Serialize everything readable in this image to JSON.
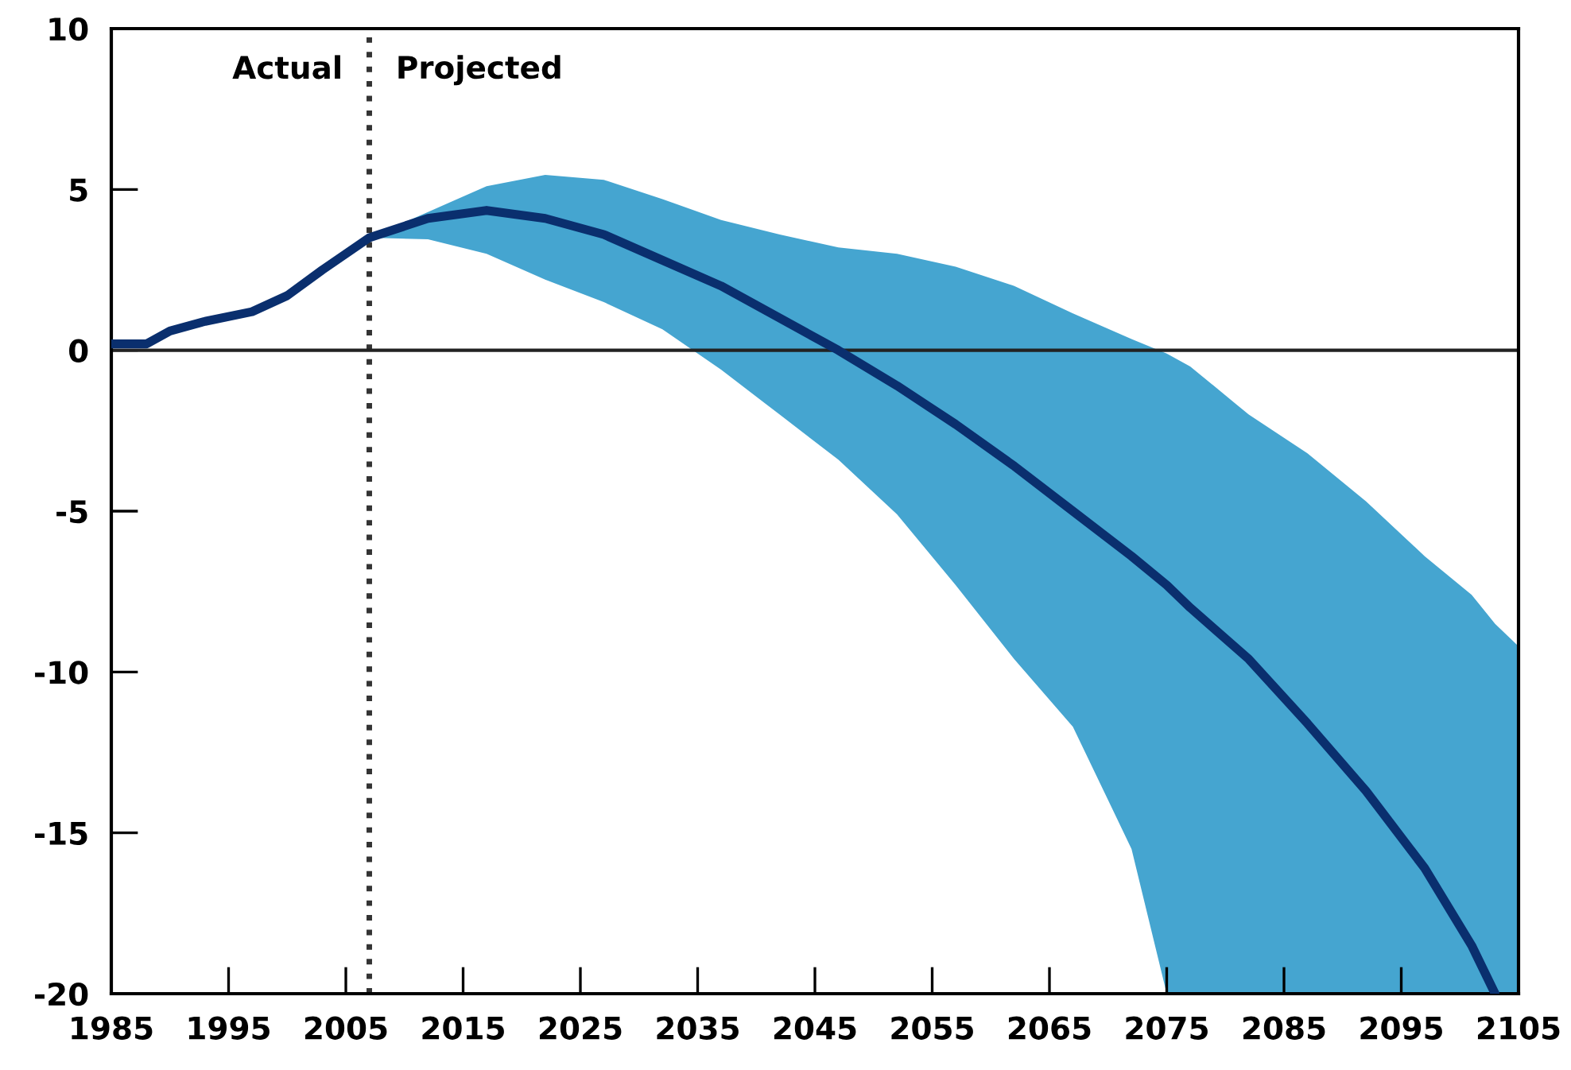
{
  "chart_data": {
    "type": "line",
    "xlim": [
      1985,
      2105
    ],
    "ylim": [
      -20,
      10
    ],
    "xticks": [
      1985,
      1995,
      2005,
      2015,
      2025,
      2035,
      2045,
      2055,
      2065,
      2075,
      2085,
      2095,
      2105
    ],
    "yticks": [
      -20,
      -15,
      -10,
      -5,
      0,
      5,
      10
    ],
    "grid": false,
    "legend": false,
    "series": [
      {
        "color": "#0a2f6e",
        "x": [
          1985,
          1988,
          1990,
          1993,
          1997,
          2000,
          2003,
          2005,
          2007,
          2012,
          2017,
          2022,
          2027,
          2032,
          2037,
          2042,
          2047,
          2052,
          2057,
          2062,
          2067,
          2072,
          2075,
          2077,
          2082,
          2087,
          2092,
          2097,
          2101,
          2103,
          2105
        ],
        "values": [
          0.2,
          0.2,
          0.6,
          0.9,
          1.2,
          1.7,
          2.5,
          3.0,
          3.5,
          4.1,
          4.35,
          4.1,
          3.6,
          2.8,
          2.0,
          1.0,
          0,
          -1.1,
          -2.3,
          -3.6,
          -5.0,
          -6.4,
          -7.3,
          -8.0,
          -9.6,
          -11.6,
          -13.7,
          -16.1,
          -18.5,
          -20,
          null
        ],
        "upper": [
          null,
          null,
          null,
          null,
          null,
          null,
          null,
          null,
          3.5,
          4.3,
          5.1,
          5.45,
          5.3,
          4.7,
          4.05,
          3.6,
          3.2,
          3.0,
          2.6,
          2.0,
          1.15,
          0.35,
          -0.1,
          -0.5,
          -2.0,
          -3.2,
          -4.7,
          -6.4,
          -7.6,
          -8.5,
          -9.2
        ],
        "lower": [
          null,
          null,
          null,
          null,
          null,
          null,
          null,
          null,
          3.5,
          3.45,
          3.0,
          2.2,
          1.5,
          0.65,
          -0.6,
          -2.0,
          -3.4,
          -5.1,
          -7.3,
          -9.6,
          -11.7,
          -15.5,
          -20,
          -20,
          -20,
          -20,
          -20,
          -20,
          -20,
          -20,
          -20
        ]
      }
    ],
    "ref_lines": [
      {
        "axis": "x",
        "value": 2007,
        "line_style": "dotted",
        "color": "#333333"
      },
      {
        "axis": "y",
        "value": 0,
        "line_style": "solid",
        "color": "#222222"
      }
    ],
    "annotations": [
      "Actual",
      "Projected"
    ]
  }
}
